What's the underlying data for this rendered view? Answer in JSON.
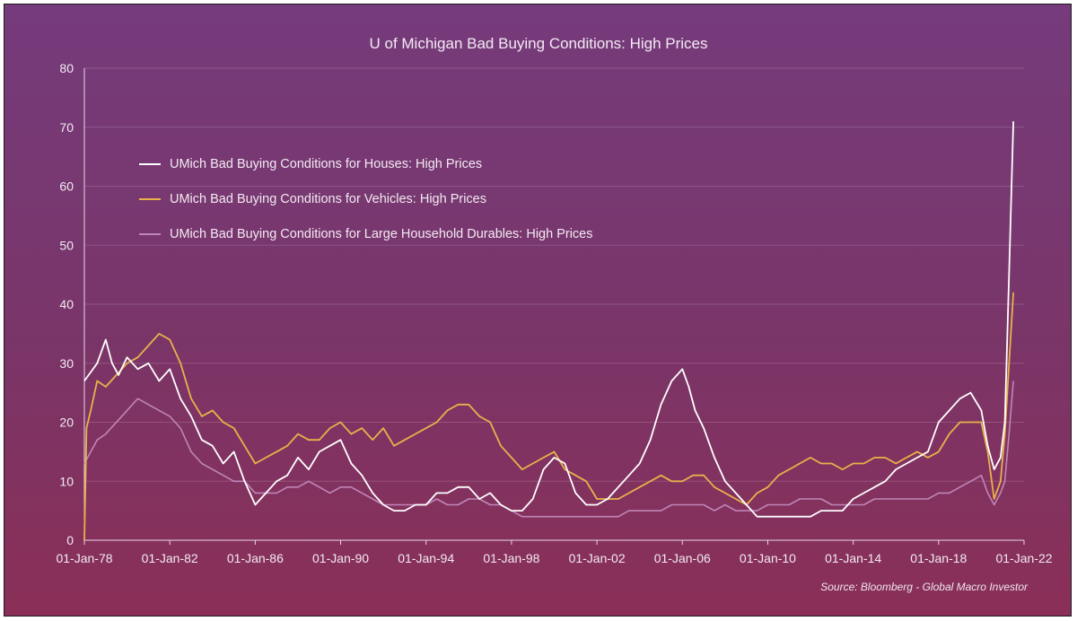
{
  "chart_data": {
    "type": "line",
    "title": "U of Michigan Bad Buying Conditions: High Prices",
    "source": "Source: Bloomberg - Global Macro Investor",
    "ylim": [
      0,
      80
    ],
    "yticks": [
      "0",
      "10",
      "20",
      "30",
      "40",
      "50",
      "60",
      "70",
      "80"
    ],
    "xlim": [
      1978,
      2022
    ],
    "xticks": [
      {
        "year": 1978,
        "label": "01-Jan-78"
      },
      {
        "year": 1982,
        "label": "01-Jan-82"
      },
      {
        "year": 1986,
        "label": "01-Jan-86"
      },
      {
        "year": 1990,
        "label": "01-Jan-90"
      },
      {
        "year": 1994,
        "label": "01-Jan-94"
      },
      {
        "year": 1998,
        "label": "01-Jan-98"
      },
      {
        "year": 2002,
        "label": "01-Jan-02"
      },
      {
        "year": 2006,
        "label": "01-Jan-06"
      },
      {
        "year": 2010,
        "label": "01-Jan-10"
      },
      {
        "year": 2014,
        "label": "01-Jan-14"
      },
      {
        "year": 2018,
        "label": "01-Jan-18"
      },
      {
        "year": 2022,
        "label": "01-Jan-22"
      }
    ],
    "grid": true,
    "legend_position": "upper-left",
    "series": [
      {
        "name": "UMich Bad Buying Conditions for Houses: High Prices",
        "color": "#ffffff",
        "x": [
          1978.0,
          1978.2,
          1978.6,
          1979.0,
          1979.3,
          1979.6,
          1980.0,
          1980.5,
          1981.0,
          1981.5,
          1982.0,
          1982.5,
          1983.0,
          1983.5,
          1984.0,
          1984.5,
          1985.0,
          1985.5,
          1986.0,
          1986.5,
          1987.0,
          1987.5,
          1988.0,
          1988.5,
          1989.0,
          1989.5,
          1990.0,
          1990.5,
          1991.0,
          1991.5,
          1992.0,
          1992.5,
          1993.0,
          1993.5,
          1994.0,
          1994.5,
          1995.0,
          1995.5,
          1996.0,
          1996.5,
          1997.0,
          1997.5,
          1998.0,
          1998.5,
          1999.0,
          1999.5,
          2000.0,
          2000.5,
          2001.0,
          2001.5,
          2002.0,
          2002.5,
          2003.0,
          2003.5,
          2004.0,
          2004.5,
          2005.0,
          2005.5,
          2006.0,
          2006.3,
          2006.6,
          2007.0,
          2007.5,
          2008.0,
          2008.5,
          2009.0,
          2009.5,
          2010.0,
          2010.5,
          2011.0,
          2011.5,
          2012.0,
          2012.5,
          2013.0,
          2013.5,
          2014.0,
          2014.5,
          2015.0,
          2015.5,
          2016.0,
          2016.5,
          2017.0,
          2017.5,
          2018.0,
          2018.5,
          2019.0,
          2019.5,
          2020.0,
          2020.3,
          2020.6,
          2020.9,
          2021.1,
          2021.3,
          2021.5
        ],
        "values": [
          27,
          28,
          30,
          34,
          30,
          28,
          31,
          29,
          30,
          27,
          29,
          24,
          21,
          17,
          16,
          13,
          15,
          10,
          6,
          8,
          10,
          11,
          14,
          12,
          15,
          16,
          17,
          13,
          11,
          8,
          6,
          5,
          5,
          6,
          6,
          8,
          8,
          9,
          9,
          7,
          8,
          6,
          5,
          5,
          7,
          12,
          14,
          13,
          8,
          6,
          6,
          7,
          9,
          11,
          13,
          17,
          23,
          27,
          29,
          26,
          22,
          19,
          14,
          10,
          8,
          6,
          4,
          4,
          4,
          4,
          4,
          4,
          5,
          5,
          5,
          7,
          8,
          9,
          10,
          12,
          13,
          14,
          15,
          20,
          22,
          24,
          25,
          22,
          16,
          12,
          14,
          20,
          45,
          71
        ]
      },
      {
        "name": "UMich Bad Buying Conditions for Vehicles: High Prices",
        "color": "#e8b24a",
        "x": [
          1978.0,
          1978.1,
          1978.3,
          1978.6,
          1979.0,
          1979.5,
          1980.0,
          1980.5,
          1981.0,
          1981.5,
          1982.0,
          1982.5,
          1983.0,
          1983.5,
          1984.0,
          1984.5,
          1985.0,
          1985.5,
          1986.0,
          1986.5,
          1987.0,
          1987.5,
          1988.0,
          1988.5,
          1989.0,
          1989.5,
          1990.0,
          1990.5,
          1991.0,
          1991.5,
          1992.0,
          1992.5,
          1993.0,
          1993.5,
          1994.0,
          1994.5,
          1995.0,
          1995.5,
          1996.0,
          1996.5,
          1997.0,
          1997.5,
          1998.0,
          1998.5,
          1999.0,
          1999.5,
          2000.0,
          2000.5,
          2001.0,
          2001.5,
          2002.0,
          2002.5,
          2003.0,
          2003.5,
          2004.0,
          2004.5,
          2005.0,
          2005.5,
          2006.0,
          2006.5,
          2007.0,
          2007.5,
          2008.0,
          2008.5,
          2009.0,
          2009.5,
          2010.0,
          2010.5,
          2011.0,
          2011.5,
          2012.0,
          2012.5,
          2013.0,
          2013.5,
          2014.0,
          2014.5,
          2015.0,
          2015.5,
          2016.0,
          2016.5,
          2017.0,
          2017.5,
          2018.0,
          2018.5,
          2019.0,
          2019.5,
          2020.0,
          2020.3,
          2020.6,
          2020.9,
          2021.1,
          2021.3,
          2021.5
        ],
        "values": [
          0,
          19,
          22,
          27,
          26,
          28,
          30,
          31,
          33,
          35,
          34,
          30,
          24,
          21,
          22,
          20,
          19,
          16,
          13,
          14,
          15,
          16,
          18,
          17,
          17,
          19,
          20,
          18,
          19,
          17,
          19,
          16,
          17,
          18,
          19,
          20,
          22,
          23,
          23,
          21,
          20,
          16,
          14,
          12,
          13,
          14,
          15,
          12,
          11,
          10,
          7,
          7,
          7,
          8,
          9,
          10,
          11,
          10,
          10,
          11,
          11,
          9,
          8,
          7,
          6,
          8,
          9,
          11,
          12,
          13,
          14,
          13,
          13,
          12,
          13,
          13,
          14,
          14,
          13,
          14,
          15,
          14,
          15,
          18,
          20,
          20,
          20,
          15,
          7,
          10,
          18,
          30,
          42
        ]
      },
      {
        "name": "UMich Bad Buying Conditions for Large Household Durables: High Prices",
        "color": "#bf86b8",
        "x": [
          1978.0,
          1978.3,
          1978.6,
          1979.0,
          1979.5,
          1980.0,
          1980.5,
          1981.0,
          1981.5,
          1982.0,
          1982.5,
          1983.0,
          1983.5,
          1984.0,
          1984.5,
          1985.0,
          1985.5,
          1986.0,
          1986.5,
          1987.0,
          1987.5,
          1988.0,
          1988.5,
          1989.0,
          1989.5,
          1990.0,
          1990.5,
          1991.0,
          1991.5,
          1992.0,
          1992.5,
          1993.0,
          1993.5,
          1994.0,
          1994.5,
          1995.0,
          1995.5,
          1996.0,
          1996.5,
          1997.0,
          1997.5,
          1998.0,
          1998.5,
          1999.0,
          1999.5,
          2000.0,
          2000.5,
          2001.0,
          2001.5,
          2002.0,
          2002.5,
          2003.0,
          2003.5,
          2004.0,
          2004.5,
          2005.0,
          2005.5,
          2006.0,
          2006.5,
          2007.0,
          2007.5,
          2008.0,
          2008.5,
          2009.0,
          2009.5,
          2010.0,
          2010.5,
          2011.0,
          2011.5,
          2012.0,
          2012.5,
          2013.0,
          2013.5,
          2014.0,
          2014.5,
          2015.0,
          2015.5,
          2016.0,
          2016.5,
          2017.0,
          2017.5,
          2018.0,
          2018.5,
          2019.0,
          2019.5,
          2020.0,
          2020.3,
          2020.6,
          2020.9,
          2021.1,
          2021.3,
          2021.5
        ],
        "values": [
          13,
          15,
          17,
          18,
          20,
          22,
          24,
          23,
          22,
          21,
          19,
          15,
          13,
          12,
          11,
          10,
          10,
          8,
          8,
          8,
          9,
          9,
          10,
          9,
          8,
          9,
          9,
          8,
          7,
          6,
          6,
          6,
          6,
          6,
          7,
          6,
          6,
          7,
          7,
          6,
          6,
          5,
          4,
          4,
          4,
          4,
          4,
          4,
          4,
          4,
          4,
          4,
          5,
          5,
          5,
          5,
          6,
          6,
          6,
          6,
          5,
          6,
          5,
          5,
          5,
          6,
          6,
          6,
          7,
          7,
          7,
          6,
          6,
          6,
          6,
          7,
          7,
          7,
          7,
          7,
          7,
          8,
          8,
          9,
          10,
          11,
          8,
          6,
          8,
          10,
          18,
          27
        ]
      }
    ]
  }
}
